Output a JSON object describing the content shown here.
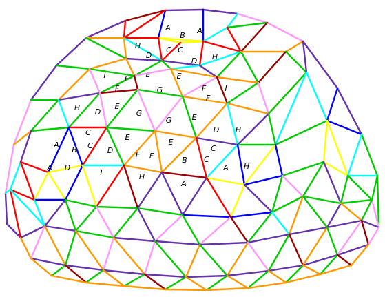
{
  "diagram": {
    "colors": {
      "A": "#ffff00",
      "B": "#0000ff",
      "C": "#ff0000",
      "D": "#00ffff",
      "E": "#00cc00",
      "F": "#ff9900",
      "G": "#ff99ff",
      "H": "#6633aa",
      "I": "#990000"
    },
    "labels": [
      {
        "text": "A"
      },
      {
        "text": "B"
      },
      {
        "text": "A"
      },
      {
        "text": "H"
      },
      {
        "text": "C"
      },
      {
        "text": "C"
      },
      {
        "text": "D"
      },
      {
        "text": "D"
      },
      {
        "text": "H"
      },
      {
        "text": "I"
      },
      {
        "text": "F"
      },
      {
        "text": "E"
      },
      {
        "text": "E"
      },
      {
        "text": "F"
      },
      {
        "text": "G"
      },
      {
        "text": "F"
      },
      {
        "text": "F"
      },
      {
        "text": "I"
      },
      {
        "text": "H"
      },
      {
        "text": "D"
      },
      {
        "text": "E"
      },
      {
        "text": "G"
      },
      {
        "text": "G"
      },
      {
        "text": "E"
      },
      {
        "text": "D"
      },
      {
        "text": "H"
      },
      {
        "text": "C"
      },
      {
        "text": "A"
      },
      {
        "text": "B"
      },
      {
        "text": "C"
      },
      {
        "text": "E"
      },
      {
        "text": "E"
      },
      {
        "text": "D"
      },
      {
        "text": "F"
      },
      {
        "text": "F"
      },
      {
        "text": "C"
      },
      {
        "text": "C"
      },
      {
        "text": "A"
      },
      {
        "text": "D"
      },
      {
        "text": "B"
      },
      {
        "text": "A"
      },
      {
        "text": "H"
      },
      {
        "text": "I"
      },
      {
        "text": "H"
      },
      {
        "text": "A"
      }
    ]
  }
}
